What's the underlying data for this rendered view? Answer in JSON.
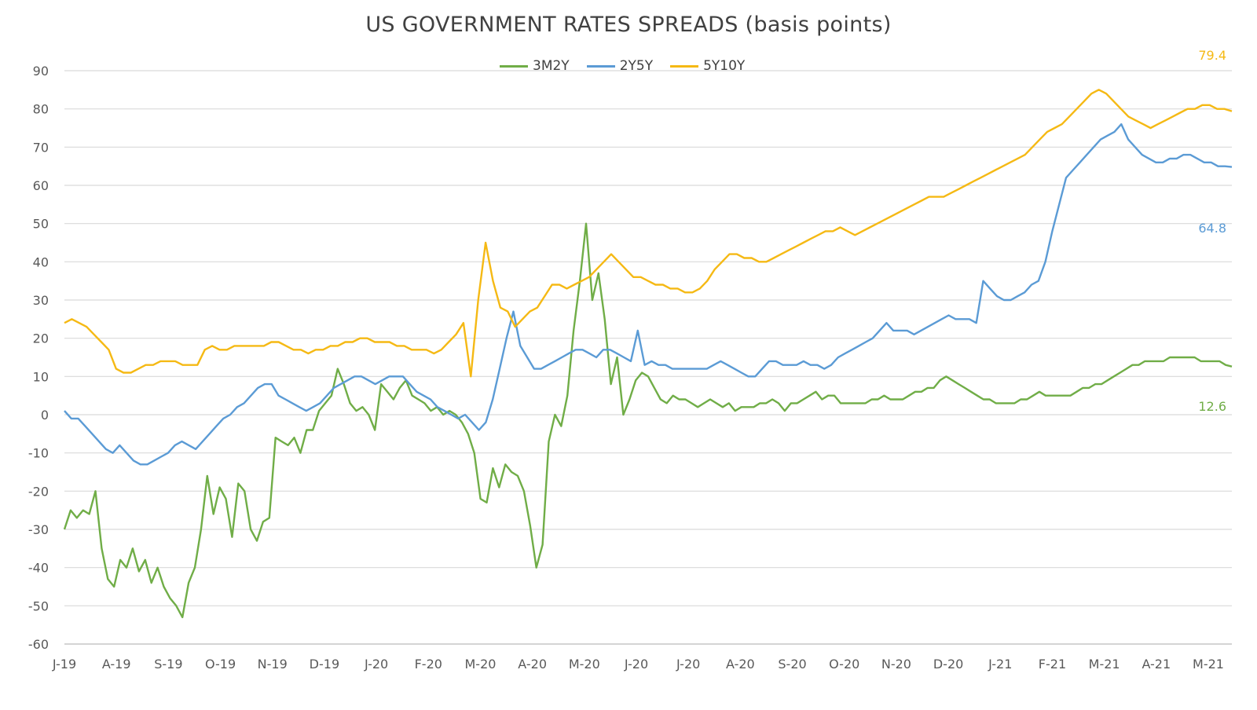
{
  "chart_data": {
    "type": "line",
    "title": "US GOVERNMENT RATES SPREADS (basis points)",
    "ylim": [
      -60,
      90
    ],
    "yticks": [
      90,
      80,
      70,
      60,
      50,
      40,
      30,
      20,
      10,
      0,
      -10,
      -20,
      -30,
      -40,
      -50,
      -60
    ],
    "xticks": [
      "J-19",
      "A-19",
      "S-19",
      "O-19",
      "N-19",
      "D-19",
      "J-20",
      "F-20",
      "M-20",
      "A-20",
      "M-20",
      "J-20",
      "J-20",
      "A-20",
      "S-20",
      "O-20",
      "N-20",
      "D-20",
      "J-21",
      "F-21",
      "M-21",
      "A-21",
      "M-21"
    ],
    "grid": true,
    "legend_position": "top-center",
    "series": [
      {
        "name": "3M2Y",
        "color": "#70AD47",
        "end_label": "12.6",
        "values": [
          -30,
          -25,
          -27,
          -25,
          -26,
          -20,
          -35,
          -43,
          -45,
          -38,
          -40,
          -35,
          -41,
          -38,
          -44,
          -40,
          -45,
          -48,
          -50,
          -53,
          -44,
          -40,
          -30,
          -16,
          -26,
          -19,
          -22,
          -32,
          -18,
          -20,
          -30,
          -33,
          -28,
          -27,
          -6,
          -7,
          -8,
          -6,
          -10,
          -4,
          -4,
          1,
          3,
          5,
          12,
          8,
          3,
          1,
          2,
          0,
          -4,
          8,
          6,
          4,
          7,
          9,
          5,
          4,
          3,
          1,
          2,
          0,
          1,
          0,
          -2,
          -5,
          -10,
          -22,
          -23,
          -14,
          -19,
          -13,
          -15,
          -16,
          -20,
          -29,
          -40,
          -34,
          -7,
          0,
          -3,
          5,
          22,
          35,
          50,
          30,
          37,
          25,
          8,
          15,
          0,
          4,
          9,
          11,
          10,
          7,
          4,
          3,
          5,
          4,
          4,
          3,
          2,
          3,
          4,
          3,
          2,
          3,
          1,
          2,
          2,
          2,
          3,
          3,
          4,
          3,
          1,
          3,
          3,
          4,
          5,
          6,
          4,
          5,
          5,
          3,
          3,
          3,
          3,
          3,
          4,
          4,
          5,
          4,
          4,
          4,
          5,
          6,
          6,
          7,
          7,
          9,
          10,
          9,
          8,
          7,
          6,
          5,
          4,
          4,
          3,
          3,
          3,
          3,
          4,
          4,
          5,
          6,
          5,
          5,
          5,
          5,
          5,
          6,
          7,
          7,
          8,
          8,
          9,
          10,
          11,
          12,
          13,
          13,
          14,
          14,
          14,
          14,
          15,
          15,
          15,
          15,
          15,
          14,
          14,
          14,
          14,
          13,
          12.6
        ]
      },
      {
        "name": "2Y5Y",
        "color": "#5B9BD5",
        "end_label": "64.8",
        "values": [
          1,
          -1,
          -1,
          -3,
          -5,
          -7,
          -9,
          -10,
          -8,
          -10,
          -12,
          -13,
          -13,
          -12,
          -11,
          -10,
          -8,
          -7,
          -8,
          -9,
          -7,
          -5,
          -3,
          -1,
          0,
          2,
          3,
          5,
          7,
          8,
          8,
          5,
          4,
          3,
          2,
          1,
          2,
          3,
          5,
          7,
          8,
          9,
          10,
          10,
          9,
          8,
          9,
          10,
          10,
          10,
          8,
          6,
          5,
          4,
          2,
          1,
          0,
          -1,
          0,
          -2,
          -4,
          -2,
          4,
          12,
          20,
          27,
          18,
          15,
          12,
          12,
          13,
          14,
          15,
          16,
          17,
          17,
          16,
          15,
          17,
          17,
          16,
          15,
          14,
          22,
          13,
          14,
          13,
          13,
          12,
          12,
          12,
          12,
          12,
          12,
          13,
          14,
          13,
          12,
          11,
          10,
          10,
          12,
          14,
          14,
          13,
          13,
          13,
          14,
          13,
          13,
          12,
          13,
          15,
          16,
          17,
          18,
          19,
          20,
          22,
          24,
          22,
          22,
          22,
          21,
          22,
          23,
          24,
          25,
          26,
          25,
          25,
          25,
          24,
          35,
          33,
          31,
          30,
          30,
          31,
          32,
          34,
          35,
          40,
          48,
          55,
          62,
          64,
          66,
          68,
          70,
          72,
          73,
          74,
          76,
          72,
          70,
          68,
          67,
          66,
          66,
          67,
          67,
          68,
          68,
          67,
          66,
          66,
          65,
          65,
          64.8
        ]
      },
      {
        "name": "5Y10Y",
        "color": "#F5B914",
        "end_label": "79.4",
        "values": [
          24,
          25,
          24,
          23,
          21,
          19,
          17,
          12,
          11,
          11,
          12,
          13,
          13,
          14,
          14,
          14,
          13,
          13,
          13,
          17,
          18,
          17,
          17,
          18,
          18,
          18,
          18,
          18,
          19,
          19,
          18,
          17,
          17,
          16,
          17,
          17,
          18,
          18,
          19,
          19,
          20,
          20,
          19,
          19,
          19,
          18,
          18,
          17,
          17,
          17,
          16,
          17,
          19,
          21,
          24,
          10,
          30,
          45,
          35,
          28,
          27,
          23,
          25,
          27,
          28,
          31,
          34,
          34,
          33,
          34,
          35,
          36,
          38,
          40,
          42,
          40,
          38,
          36,
          36,
          35,
          34,
          34,
          33,
          33,
          32,
          32,
          33,
          35,
          38,
          40,
          42,
          42,
          41,
          41,
          40,
          40,
          41,
          42,
          43,
          44,
          45,
          46,
          47,
          48,
          48,
          49,
          48,
          47,
          48,
          49,
          50,
          51,
          52,
          53,
          54,
          55,
          56,
          57,
          57,
          57,
          58,
          59,
          60,
          61,
          62,
          63,
          64,
          65,
          66,
          67,
          68,
          70,
          72,
          74,
          75,
          76,
          78,
          80,
          82,
          84,
          85,
          84,
          82,
          80,
          78,
          77,
          76,
          75,
          76,
          77,
          78,
          79,
          80,
          80,
          81,
          81,
          80,
          80,
          79.4
        ]
      }
    ]
  }
}
